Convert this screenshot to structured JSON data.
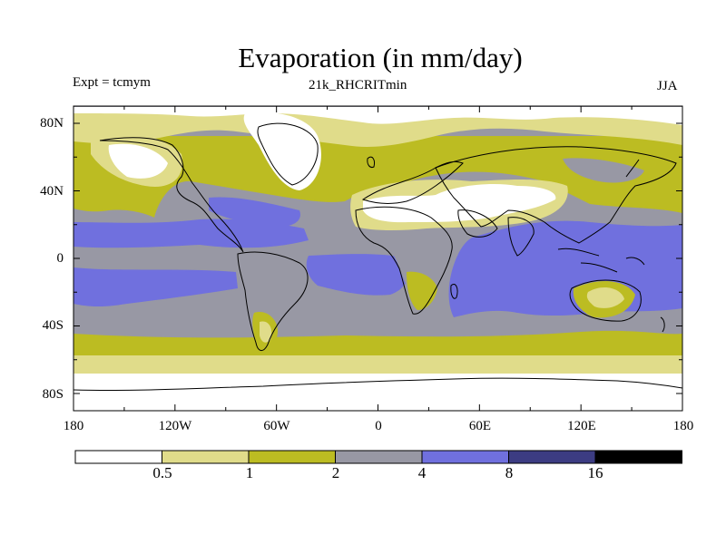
{
  "title": "Evaporation (in mm/day)",
  "experiment_label": "Expt = tcmym",
  "run_label": "21k_RHCRITmin",
  "season_label": "JJA",
  "map": {
    "lat_ticks": [
      "80N",
      "40N",
      "0",
      "40S",
      "80S"
    ],
    "lon_ticks": [
      "180",
      "120W",
      "60W",
      "0",
      "60E",
      "120E",
      "180"
    ]
  },
  "colorbar": {
    "thresholds": [
      "0.5",
      "1",
      "2",
      "4",
      "8",
      "16"
    ],
    "colors": [
      "#ffffff",
      "#e0dc8a",
      "#bcbc22",
      "#9898a4",
      "#7070de",
      "#3c3c82",
      "#000000"
    ]
  },
  "palette": {
    "lt05": "#ffffff",
    "b05_1": "#e0dc8a",
    "b1_2": "#bcbc22",
    "b2_4": "#9898a4",
    "b4_8": "#7070de"
  }
}
